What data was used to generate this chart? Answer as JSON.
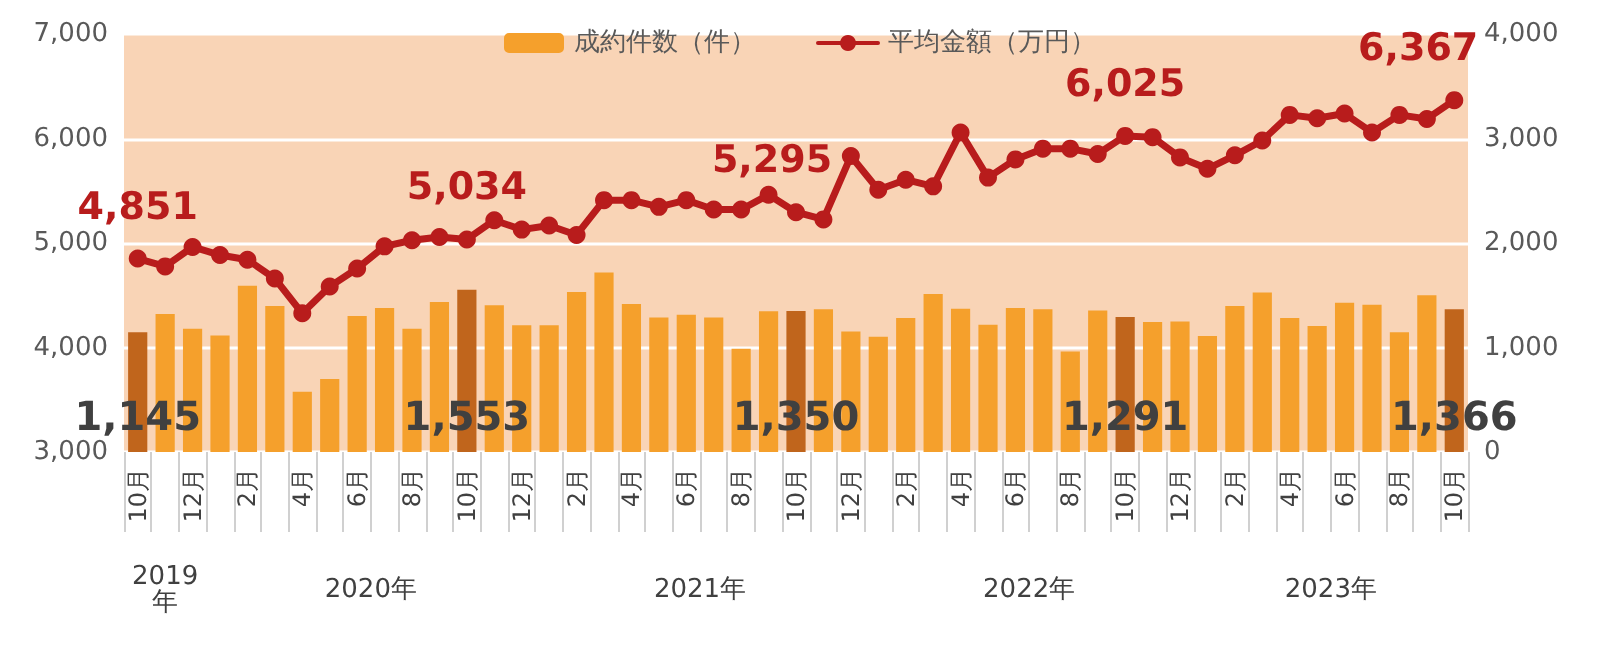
{
  "chart_data": {
    "type": "bar",
    "categories": [
      "10月",
      null,
      "12月",
      null,
      "2月",
      null,
      "4月",
      null,
      "6月",
      null,
      "8月",
      null,
      "10月",
      null,
      "12月",
      null,
      "2月",
      null,
      "4月",
      null,
      "6月",
      null,
      "8月",
      null,
      "10月",
      null,
      "12月",
      null,
      "2月",
      null,
      "4月",
      null,
      "6月",
      null,
      "8月",
      null,
      "10月",
      null,
      "12月",
      null,
      "2月",
      null,
      "4月",
      null,
      "6月",
      null,
      "8月",
      null,
      "10月"
    ],
    "series": [
      {
        "name": "成約件数（件）",
        "axis": "y2",
        "color": "#f5a02c",
        "colors": [
          "#c0651c",
          "#f5a02c",
          "#f5a02c",
          "#f5a02c",
          "#f5a02c",
          "#f5a02c",
          "#f5a02c",
          "#f5a02c",
          "#f5a02c",
          "#f5a02c",
          "#f5a02c",
          "#f5a02c",
          "#c0651c",
          "#f5a02c",
          "#f5a02c",
          "#f5a02c",
          "#f5a02c",
          "#f5a02c",
          "#f5a02c",
          "#f5a02c",
          "#f5a02c",
          "#f5a02c",
          "#f5a02c",
          "#f5a02c",
          "#c0651c",
          "#f5a02c",
          "#f5a02c",
          "#f5a02c",
          "#f5a02c",
          "#f5a02c",
          "#f5a02c",
          "#f5a02c",
          "#f5a02c",
          "#f5a02c",
          "#f5a02c",
          "#f5a02c",
          "#c0651c",
          "#f5a02c",
          "#f5a02c",
          "#f5a02c",
          "#f5a02c",
          "#f5a02c",
          "#f5a02c",
          "#f5a02c",
          "#f5a02c",
          "#f5a02c",
          "#f5a02c",
          "#f5a02c",
          "#c0651c"
        ],
        "values": [
          1145,
          1321,
          1179,
          1115,
          1590,
          1397,
          577,
          699,
          1301,
          1378,
          1179,
          1436,
          1553,
          1404,
          1212,
          1212,
          1532,
          1718,
          1417,
          1288,
          1314,
          1288,
          987,
          1346,
          1350,
          1365,
          1154,
          1103,
          1282,
          1513,
          1372,
          1218,
          1378,
          1365,
          962,
          1353,
          1291,
          1244,
          1250,
          1109,
          1397,
          1526,
          1282,
          1205,
          1429,
          1410,
          1147,
          1500,
          1366
        ],
        "value_labels": [
          "1,145",
          null,
          null,
          null,
          null,
          null,
          null,
          null,
          null,
          null,
          null,
          null,
          "1,553",
          null,
          null,
          null,
          null,
          null,
          null,
          null,
          null,
          null,
          null,
          null,
          "1,350",
          null,
          null,
          null,
          null,
          null,
          null,
          null,
          null,
          null,
          null,
          null,
          "1,291",
          null,
          null,
          null,
          null,
          null,
          null,
          null,
          null,
          null,
          null,
          null,
          "1,366"
        ]
      },
      {
        "name": "平均金額（万円）",
        "type": "line",
        "color": "#b81c1c",
        "values": [
          4851,
          4776,
          4962,
          4885,
          4840,
          4660,
          4327,
          4583,
          4756,
          4968,
          5026,
          5058,
          5034,
          5218,
          5128,
          5167,
          5077,
          5410,
          5410,
          5346,
          5410,
          5320,
          5320,
          5462,
          5295,
          5226,
          5832,
          5510,
          5606,
          5542,
          6058,
          5626,
          5800,
          5903,
          5903,
          5852,
          6025,
          6013,
          5819,
          5710,
          5839,
          5981,
          6226,
          6194,
          6239,
          6058,
          6226,
          6187,
          6367
        ],
        "value_labels": [
          "4,851",
          null,
          null,
          null,
          null,
          null,
          null,
          null,
          null,
          null,
          null,
          null,
          "5,034",
          null,
          null,
          null,
          null,
          null,
          null,
          null,
          null,
          null,
          null,
          null,
          "5,295",
          null,
          null,
          null,
          null,
          null,
          null,
          null,
          null,
          null,
          null,
          null,
          "6,025",
          null,
          null,
          null,
          null,
          null,
          null,
          null,
          null,
          null,
          null,
          null,
          "6,367"
        ]
      }
    ],
    "ylim": [
      3000,
      7000
    ],
    "yticks": [
      {
        "value": 3000,
        "label": "3,000"
      },
      {
        "value": 4000,
        "label": "4,000"
      },
      {
        "value": 5000,
        "label": "5,000"
      },
      {
        "value": 6000,
        "label": "6,000"
      },
      {
        "value": 7000,
        "label": "7,000"
      }
    ],
    "y2lim": [
      0,
      4000
    ],
    "y2ticks": [
      0,
      {
        "value": 1000,
        "label": "1,000"
      },
      {
        "value": 2000,
        "label": "2,000"
      },
      {
        "value": 3000,
        "label": "3,000"
      },
      {
        "value": 4000,
        "label": "4,000"
      }
    ],
    "annotations": [
      "2019年",
      "2020年",
      "2021年",
      "2022年",
      "2023年"
    ],
    "grid": "y",
    "legend": "top",
    "marker": "circle",
    "line_style": "solid"
  }
}
